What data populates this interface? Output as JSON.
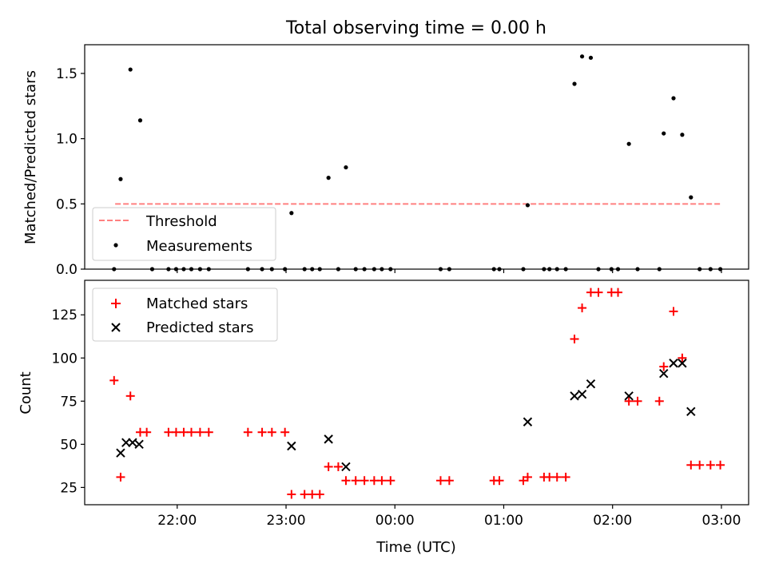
{
  "chart_data": [
    {
      "type": "scatter",
      "title": "Total observing time = 0.00 h",
      "xlabel": "",
      "ylabel": "Matched/Predicted stars",
      "xlim": [
        21.15,
        27.25
      ],
      "ylim": [
        0,
        1.72
      ],
      "yticks": [
        0.0,
        0.5,
        1.0,
        1.5
      ],
      "ytick_labels": [
        "0.0",
        "0.5",
        "1.0",
        "1.5"
      ],
      "xticks": [
        22,
        23,
        24,
        25,
        26,
        27
      ],
      "xtick_labels": [
        "",
        "",
        "",
        "",
        "",
        ""
      ],
      "threshold": {
        "name": "Threshold",
        "y": 0.5,
        "x_range": [
          21.43,
          27.0
        ],
        "color": "#ff8080"
      },
      "legend_position": "lower-left",
      "series": [
        {
          "name": "Measurements",
          "color": "#000000",
          "marker": "dot",
          "x": [
            21.42,
            21.48,
            21.57,
            21.66,
            21.77,
            21.92,
            21.99,
            22.06,
            22.13,
            22.21,
            22.29,
            22.65,
            22.78,
            22.87,
            22.99,
            23.05,
            23.17,
            23.24,
            23.31,
            23.39,
            23.48,
            23.55,
            23.64,
            23.72,
            23.81,
            23.88,
            23.96,
            24.42,
            24.5,
            24.91,
            24.96,
            25.18,
            25.22,
            25.37,
            25.42,
            25.49,
            25.57,
            25.65,
            25.72,
            25.8,
            25.87,
            25.99,
            26.05,
            26.15,
            26.23,
            26.43,
            26.47,
            26.56,
            26.64,
            26.72,
            26.8,
            26.9,
            26.99
          ],
          "y": [
            0.0,
            0.69,
            1.53,
            1.14,
            0.0,
            0.0,
            0.0,
            0.0,
            0.0,
            0.0,
            0.0,
            0.0,
            0.0,
            0.0,
            0.0,
            0.43,
            0.0,
            0.0,
            0.0,
            0.7,
            0.0,
            0.78,
            0.0,
            0.0,
            0.0,
            0.0,
            0.0,
            0.0,
            0.0,
            0.0,
            0.0,
            0.0,
            0.49,
            0.0,
            0.0,
            0.0,
            0.0,
            1.42,
            1.63,
            1.62,
            0.0,
            0.0,
            0.0,
            0.96,
            0.0,
            0.0,
            1.04,
            1.31,
            1.03,
            0.55,
            0.0,
            0.0,
            0.0
          ]
        }
      ]
    },
    {
      "type": "scatter",
      "title": "",
      "xlabel": "Time (UTC)",
      "ylabel": "Count",
      "xlim": [
        21.15,
        27.25
      ],
      "ylim": [
        15,
        145
      ],
      "yticks": [
        25,
        50,
        75,
        100,
        125
      ],
      "ytick_labels": [
        "25",
        "50",
        "75",
        "100",
        "125"
      ],
      "xticks": [
        22,
        23,
        24,
        25,
        26,
        27
      ],
      "xtick_labels": [
        "22:00",
        "23:00",
        "00:00",
        "01:00",
        "02:00",
        "03:00"
      ],
      "legend_position": "upper-left",
      "series": [
        {
          "name": "Matched stars",
          "color": "#ff0000",
          "marker": "plus",
          "x": [
            21.42,
            21.48,
            21.57,
            21.66,
            21.72,
            21.92,
            21.99,
            22.06,
            22.13,
            22.21,
            22.29,
            22.65,
            22.78,
            22.87,
            22.99,
            23.05,
            23.17,
            23.24,
            23.31,
            23.39,
            23.48,
            23.55,
            23.64,
            23.72,
            23.81,
            23.88,
            23.96,
            24.42,
            24.5,
            24.91,
            24.96,
            25.18,
            25.22,
            25.37,
            25.42,
            25.49,
            25.57,
            25.65,
            25.72,
            25.8,
            25.87,
            25.99,
            26.05,
            26.15,
            26.23,
            26.43,
            26.47,
            26.56,
            26.64,
            26.72,
            26.8,
            26.9,
            26.99
          ],
          "y": [
            87,
            31,
            78,
            57,
            57,
            57,
            57,
            57,
            57,
            57,
            57,
            57,
            57,
            57,
            57,
            21,
            21,
            21,
            21,
            37,
            37,
            29,
            29,
            29,
            29,
            29,
            29,
            29,
            29,
            29,
            29,
            29,
            31,
            31,
            31,
            31,
            31,
            111,
            129,
            138,
            138,
            138,
            138,
            75,
            75,
            75,
            95,
            127,
            100,
            38,
            38,
            38,
            38
          ]
        },
        {
          "name": "Predicted stars",
          "color": "#000000",
          "marker": "x",
          "x": [
            21.48,
            21.53,
            21.59,
            21.65,
            23.05,
            23.39,
            23.55,
            25.22,
            25.65,
            25.72,
            25.8,
            26.15,
            26.47,
            26.56,
            26.64,
            26.72
          ],
          "y": [
            45,
            51,
            51,
            50,
            49,
            53,
            37,
            63,
            78,
            79,
            85,
            78,
            91,
            97,
            97,
            69
          ]
        }
      ]
    }
  ]
}
